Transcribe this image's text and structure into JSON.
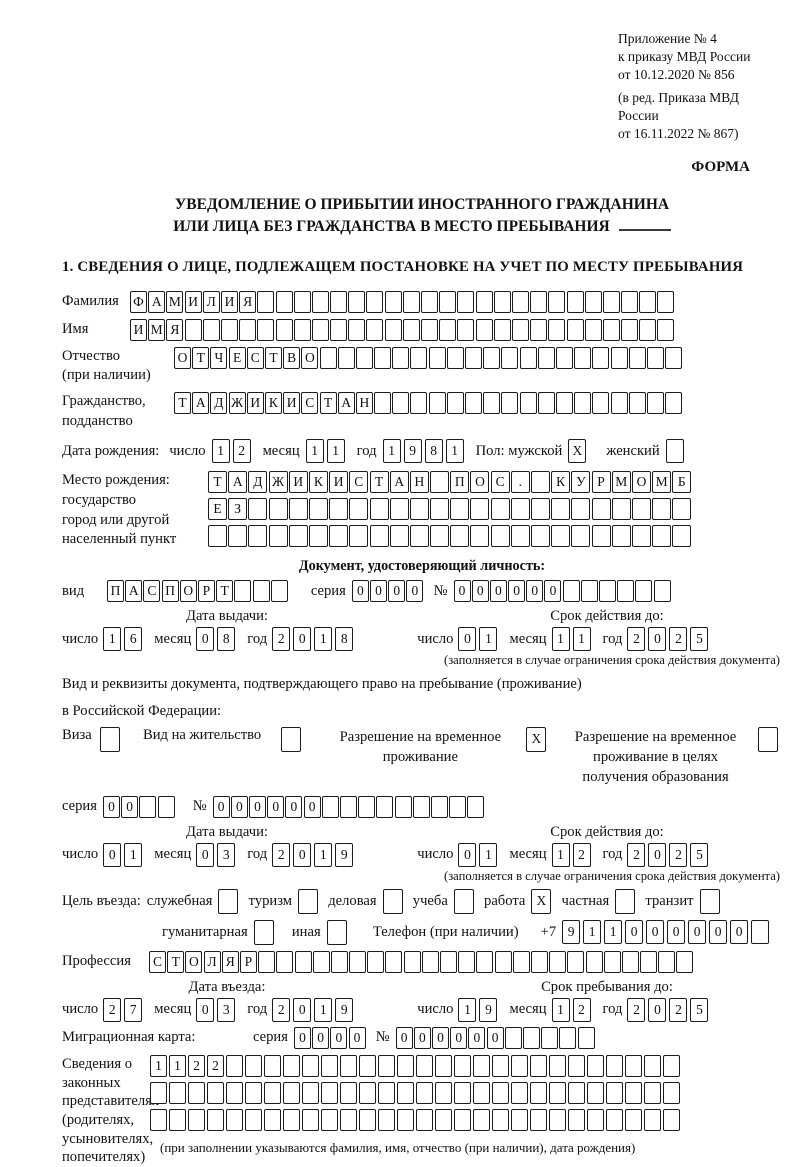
{
  "header": {
    "ref_lines": [
      "Приложение № 4",
      "к приказу МВД России",
      "от 10.12.2020 № 856"
    ],
    "ref_lines2": [
      "(в ред. Приказа МВД России",
      "от 16.11.2022 № 867)"
    ],
    "forma": "ФОРМА"
  },
  "title": {
    "line1": "УВЕДОМЛЕНИЕ О ПРИБЫТИИ ИНОСТРАННОГО ГРАЖДАНИНА",
    "line2": "ИЛИ ЛИЦА БЕЗ ГРАЖДАНСТВА В МЕСТО ПРЕБЫВАНИЯ"
  },
  "section1_heading": "1. СВЕДЕНИЯ О ЛИЦЕ, ПОДЛЕЖАЩЕМ ПОСТАНОВКЕ НА УЧЕТ ПО МЕСТУ ПРЕБЫВАНИЯ",
  "labels": {
    "day": "число",
    "month": "месяц",
    "year": "год",
    "series": "серия",
    "number": "№",
    "validity_note": "(заполняется в случае ограничения срока действия документа)"
  },
  "fields": {
    "surname": {
      "label": "Фамилия",
      "boxes": {
        "text": "ФАМИЛИЯ",
        "len": 30
      }
    },
    "firstname": {
      "label": "Имя",
      "boxes": {
        "text": "ИМЯ",
        "len": 30
      }
    },
    "patronymic": {
      "label1": "Отчество",
      "label2": "(при наличии)",
      "boxes": {
        "text": "ОТЧЕСТВО",
        "len": 28
      }
    },
    "citizenship": {
      "label1": "Гражданство,",
      "label2": "подданство",
      "boxes": {
        "text": "ТАДЖИКИСТАН",
        "len": 28
      }
    },
    "birthdate": {
      "label": "Дата рождения:",
      "day": "12",
      "month": "11",
      "year": "1981",
      "sex_label": "Пол: мужской",
      "male": "X",
      "female_label": "женский",
      "female": ""
    },
    "birthplace": {
      "labels": [
        "Место рождения:",
        "государство",
        "город или другой",
        "населенный пункт"
      ],
      "row1": {
        "text": "ТАДЖИКИСТАН ПОС. КУРМОМБ",
        "len": 24
      },
      "row2": {
        "text": "ЕЗ",
        "len": 24
      },
      "row3": {
        "text": "",
        "len": 24
      }
    }
  },
  "identity_doc": {
    "heading": "Документ, удостоверяющий личность:",
    "kind_label": "вид",
    "kind": {
      "text": "ПАСПОРТ",
      "len": 10
    },
    "series": {
      "text": "0000",
      "len": 4
    },
    "number": {
      "text": "000000",
      "len": 12
    },
    "issue_heading": "Дата выдачи:",
    "issue": {
      "day": "16",
      "month": "08",
      "year": "2018"
    },
    "valid_heading": "Срок действия до:",
    "valid": {
      "day": "01",
      "month": "11",
      "year": "2025"
    }
  },
  "residence_doc": {
    "intro1": "Вид и реквизиты документа, подтверждающего право на пребывание (проживание)",
    "intro2": "в Российской Федерации:",
    "options": [
      {
        "label": "Виза",
        "value": ""
      },
      {
        "label": "Вид на жительство",
        "value": ""
      },
      {
        "label": "Разрешение на временное проживание",
        "value": "X"
      },
      {
        "label": "Разрешение на временное проживание в целях получения образования",
        "value": ""
      }
    ],
    "series": {
      "text": "00",
      "len": 4
    },
    "number": {
      "text": "000000",
      "len": 15
    },
    "issue_heading": "Дата выдачи:",
    "issue": {
      "day": "01",
      "month": "03",
      "year": "2019"
    },
    "valid_heading": "Срок действия до:",
    "valid": {
      "day": "01",
      "month": "12",
      "year": "2025"
    }
  },
  "visit": {
    "purpose_label": "Цель въезда:",
    "purposes": [
      {
        "label": "служебная",
        "value": ""
      },
      {
        "label": "туризм",
        "value": ""
      },
      {
        "label": "деловая",
        "value": ""
      },
      {
        "label": "учеба",
        "value": ""
      },
      {
        "label": "работа",
        "value": "X"
      },
      {
        "label": "частная",
        "value": ""
      },
      {
        "label": "транзит",
        "value": ""
      }
    ],
    "purposes2": [
      {
        "label": "гуманитарная",
        "value": ""
      },
      {
        "label": "иная",
        "value": ""
      }
    ],
    "phone_label": "Телефон (при наличии)",
    "phone_prefix": "+7",
    "phone": {
      "text": "911000000",
      "len": 10
    },
    "profession_label": "Профессия",
    "profession": {
      "text": "СТОЛЯР",
      "len": 30
    },
    "entry_heading": "Дата въезда:",
    "entry": {
      "day": "27",
      "month": "03",
      "year": "2019"
    },
    "stay_heading": "Срок пребывания до:",
    "stay": {
      "day": "19",
      "month": "12",
      "year": "2025"
    }
  },
  "migration_card": {
    "label": "Миграционная карта:",
    "series": {
      "text": "0000",
      "len": 4
    },
    "number": {
      "text": "000000",
      "len": 11
    }
  },
  "representatives": {
    "label_lines": [
      "Сведения о",
      "законных",
      "представителях",
      "(родителях,",
      "усыновителях,",
      "попечителях)"
    ],
    "row1": {
      "text": "1122",
      "len": 28
    },
    "row2": {
      "text": "",
      "len": 28
    },
    "row3": {
      "text": "",
      "len": 28
    },
    "note": "(при заполнении указываются фамилия, имя, отчество (при наличии), дата рождения)"
  }
}
